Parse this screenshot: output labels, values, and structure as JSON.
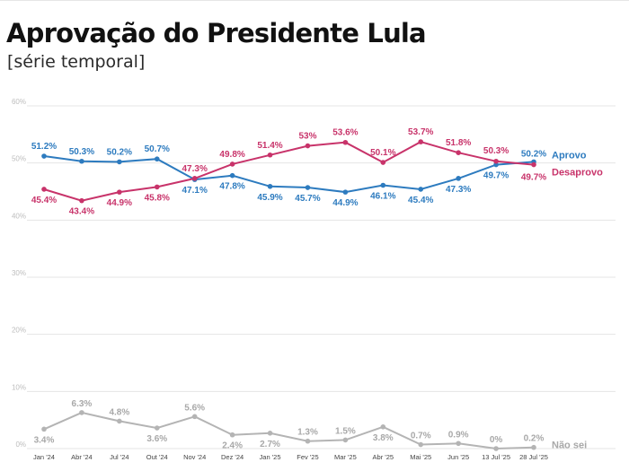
{
  "header": {
    "title": "Aprovação do Presidente Lula",
    "subtitle": "[série temporal]"
  },
  "colors": {
    "aprovo": "#2d7bbf",
    "desaprovo": "#c8336a",
    "nao_sei": "#b4b4b4"
  },
  "chart_data": {
    "type": "line",
    "title": "Aprovação do Presidente Lula",
    "subtitle": "[série temporal]",
    "categories": [
      "Jan '24",
      "Abr '24",
      "Jul '24",
      "Out '24",
      "Nov '24",
      "Dez '24",
      "Jan '25",
      "Fev '25",
      "Mar '25",
      "Abr '25",
      "Mai '25",
      "Jun '25",
      "13 Jul '25",
      "28 Jul '25"
    ],
    "y_ticks": [
      "0%",
      "10%",
      "20%",
      "30%",
      "40%",
      "50%",
      "60%"
    ],
    "ylim": [
      0,
      60
    ],
    "grid": true,
    "legend": "inline labels at right end of each series",
    "series": [
      {
        "key": "aprovo",
        "name": "Aprovo",
        "values": [
          51.2,
          50.3,
          50.2,
          50.7,
          47.1,
          47.8,
          45.9,
          45.7,
          44.9,
          46.1,
          45.4,
          47.3,
          49.7,
          50.2
        ],
        "labels": [
          "51.2%",
          "50.3%",
          "50.2%",
          "50.7%",
          "47.1%",
          "47.8%",
          "45.9%",
          "45.7%",
          "44.9%",
          "46.1%",
          "45.4%",
          "47.3%",
          "49.7%",
          "50.2%"
        ]
      },
      {
        "key": "desaprovo",
        "name": "Desaprovo",
        "values": [
          45.4,
          43.4,
          44.9,
          45.8,
          47.3,
          49.8,
          51.4,
          53,
          53.6,
          50.1,
          53.7,
          51.8,
          50.3,
          49.7
        ],
        "labels": [
          "45.4%",
          "43.4%",
          "44.9%",
          "45.8%",
          "47.3%",
          "49.8%",
          "51.4%",
          "53%",
          "53.6%",
          "50.1%",
          "53.7%",
          "51.8%",
          "50.3%",
          "49.7%"
        ]
      },
      {
        "key": "nao_sei",
        "name": "Não sei",
        "values": [
          3.4,
          6.3,
          4.8,
          3.6,
          5.6,
          2.4,
          2.7,
          1.3,
          1.5,
          3.8,
          0.7,
          0.9,
          0,
          0.2
        ],
        "labels": [
          "3.4%",
          "6.3%",
          "4.8%",
          "3.6%",
          "5.6%",
          "2.4%",
          "2.7%",
          "1.3%",
          "1.5%",
          "3.8%",
          "0.7%",
          "0.9%",
          "0%",
          "0.2%"
        ]
      }
    ]
  }
}
